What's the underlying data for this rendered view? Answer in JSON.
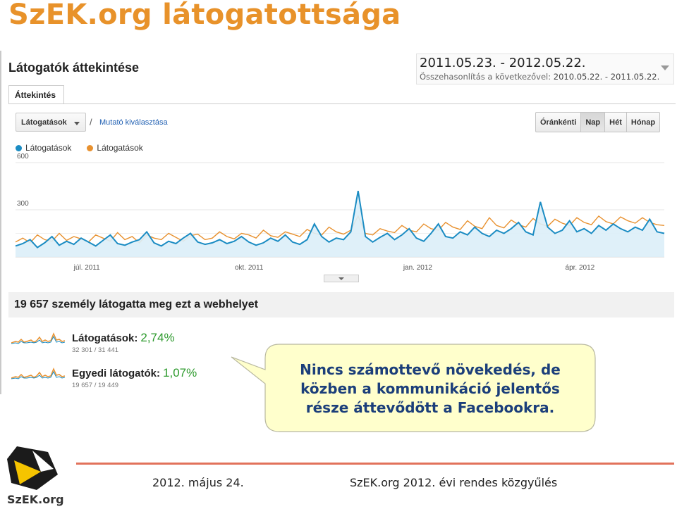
{
  "slide": {
    "title": "SzEK.org látogatottsága"
  },
  "ga": {
    "header_title": "Látogatók áttekintése",
    "date_range": "2011.05.23. - 2012.05.22.",
    "compare_label": "Összehasonlítás a következővel:",
    "compare_range": "2010.05.22. - 2011.05.22.",
    "tab_overview": "Áttekintés",
    "metric_select": "Látogatások",
    "slash": "/",
    "select_metric_link": "Mutató kiválasztása",
    "granularity": [
      {
        "label": "Óránkénti",
        "active": false
      },
      {
        "label": "Nap",
        "active": true
      },
      {
        "label": "Hét",
        "active": false
      },
      {
        "label": "Hónap",
        "active": false
      }
    ],
    "legend": [
      {
        "label": "Látogatások",
        "color": "#1b8cc3"
      },
      {
        "label": "Látogatások",
        "color": "#e8912f"
      }
    ],
    "people_summary": "19 657 személy látogatta meg ezt a webhelyet",
    "metrics": [
      {
        "label": "Látogatások:",
        "pct": "2,74%",
        "sub": "32 301 / 31 441"
      },
      {
        "label": "Egyedi látogatók:",
        "pct": "1,07%",
        "sub": "19 657 / 19 449"
      }
    ]
  },
  "chart_data": {
    "type": "line",
    "ylim": [
      0,
      600
    ],
    "y_ticks": [
      "600",
      "300"
    ],
    "x_tick_labels": [
      "júl. 2011",
      "okt. 2011",
      "jan. 2012",
      "ápr. 2012"
    ],
    "series": [
      {
        "name": "Látogatások",
        "color": "#1b8cc3",
        "values": [
          70,
          85,
          110,
          60,
          90,
          130,
          75,
          100,
          80,
          120,
          95,
          70,
          105,
          140,
          85,
          75,
          95,
          110,
          160,
          90,
          70,
          100,
          85,
          120,
          150,
          95,
          80,
          90,
          110,
          85,
          100,
          130,
          95,
          75,
          90,
          120,
          100,
          140,
          95,
          80,
          110,
          210,
          130,
          95,
          120,
          110,
          160,
          420,
          130,
          95,
          125,
          150,
          110,
          140,
          180,
          120,
          100,
          150,
          210,
          130,
          120,
          160,
          140,
          190,
          150,
          130,
          170,
          150,
          180,
          220,
          160,
          140,
          350,
          190,
          150,
          170,
          230,
          160,
          180,
          150,
          200,
          170,
          210,
          180,
          160,
          190,
          170,
          240,
          160,
          150
        ]
      },
      {
        "name": "Látogatások",
        "color": "#e8912f",
        "values": [
          95,
          120,
          90,
          140,
          110,
          100,
          150,
          105,
          130,
          115,
          95,
          140,
          120,
          100,
          155,
          110,
          130,
          90,
          140,
          120,
          110,
          150,
          125,
          100,
          135,
          145,
          110,
          120,
          160,
          130,
          115,
          150,
          140,
          120,
          170,
          135,
          125,
          160,
          145,
          130,
          175,
          150,
          140,
          190,
          160,
          145,
          170,
          260,
          150,
          140,
          180,
          165,
          155,
          200,
          170,
          160,
          210,
          180,
          170,
          220,
          190,
          175,
          230,
          195,
          180,
          250,
          200,
          185,
          235,
          205,
          190,
          245,
          210,
          195,
          240,
          215,
          200,
          250,
          220,
          205,
          260,
          225,
          210,
          255,
          230,
          215,
          250,
          220,
          205,
          200
        ]
      }
    ]
  },
  "callout": {
    "text_line1": "Nincs számottevő növekedés, de",
    "text_line2": "közben a kommunikáció jelentős",
    "text_line3": "része áttevődött a Facebookra."
  },
  "footer": {
    "date": "2012. május 24.",
    "event": "SzEK.org 2012. évi rendes közgyűlés",
    "logo_text": "SzEK.org"
  }
}
